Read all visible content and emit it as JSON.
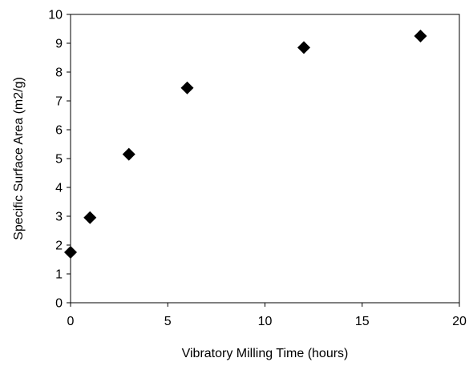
{
  "chart_data": {
    "type": "scatter",
    "title": "",
    "xlabel": "Vibratory Milling Time (hours)",
    "ylabel": "Specific Surface Area (m2/g)",
    "xlim": [
      0,
      20
    ],
    "ylim": [
      0,
      10
    ],
    "xticks": [
      "0",
      "5",
      "10",
      "15",
      "20"
    ],
    "yticks": [
      "0",
      "1",
      "2",
      "3",
      "4",
      "5",
      "6",
      "7",
      "8",
      "9",
      "10"
    ],
    "grid": false,
    "marker": "diamond",
    "marker_color": "#000000",
    "series": [
      {
        "x": [
          0,
          1,
          3,
          6,
          12,
          18
        ],
        "y": [
          1.75,
          2.95,
          5.15,
          7.45,
          8.85,
          9.25
        ]
      }
    ]
  }
}
